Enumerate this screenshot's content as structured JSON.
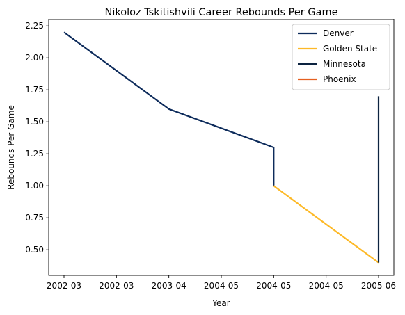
{
  "chart_data": {
    "type": "line",
    "title": "Nikoloz Tskitishvili Career Rebounds Per Game",
    "xlabel": "Year",
    "ylabel": "Rebounds Per Game",
    "x_ticks": [
      "2002-03",
      "2002-03",
      "2003-04",
      "2004-05",
      "2004-05",
      "2004-05",
      "2005-06"
    ],
    "y_ticks": [
      "0.50",
      "0.75",
      "1.00",
      "1.25",
      "1.50",
      "1.75",
      "2.00",
      "2.25"
    ],
    "ylim": [
      0.3,
      2.3
    ],
    "x_categories": [
      "2002-03",
      "2003-04",
      "2004-05",
      "2005-06"
    ],
    "legend_position": "top-right",
    "grid": false,
    "series": [
      {
        "name": "Denver",
        "color": "#0d2b5b",
        "points": [
          {
            "x": "2002-03",
            "y": 2.2
          },
          {
            "x": "2003-04",
            "y": 1.6
          },
          {
            "x": "2004-05",
            "y": 1.3
          },
          {
            "x": "2004-05",
            "y": 1.0
          }
        ]
      },
      {
        "name": "Golden State",
        "color": "#fdb927",
        "points": [
          {
            "x": "2004-05",
            "y": 1.0
          },
          {
            "x": "2005-06",
            "y": 0.4
          }
        ]
      },
      {
        "name": "Minnesota",
        "color": "#0c2340",
        "points": [
          {
            "x": "2005-06",
            "y": 0.4
          },
          {
            "x": "2005-06",
            "y": 1.7
          }
        ]
      },
      {
        "name": "Phoenix",
        "color": "#e56020",
        "points": []
      }
    ]
  }
}
